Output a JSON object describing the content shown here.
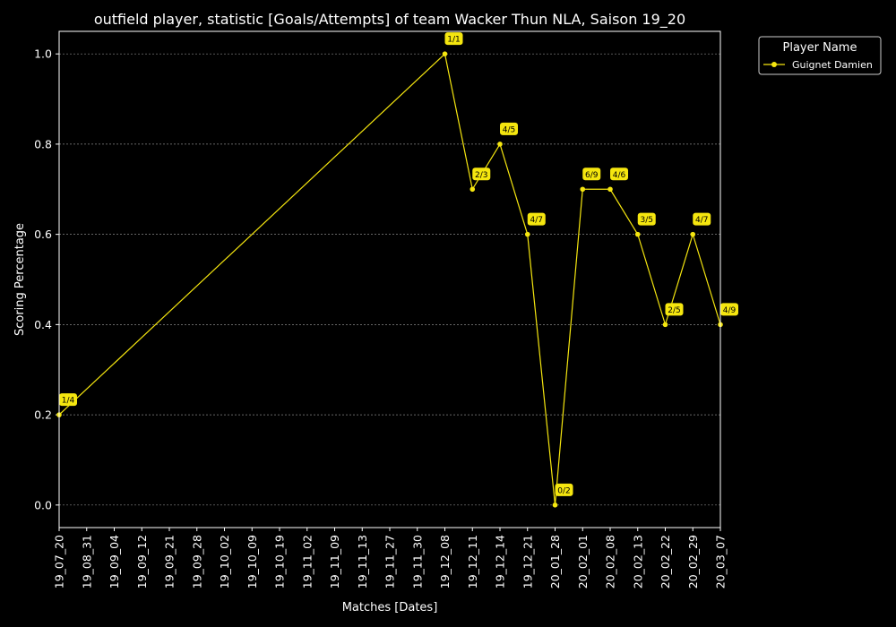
{
  "chart_data": {
    "type": "line",
    "title": "outfield player, statistic [Goals/Attempts] of team Wacker Thun NLA, Saison 19_20",
    "xlabel": "Matches [Dates]",
    "ylabel": "Scoring Percentage",
    "ylim": [
      -0.05,
      1.05
    ],
    "yticks": [
      "0.0",
      "0.2",
      "0.4",
      "0.6",
      "0.8",
      "1.0"
    ],
    "grid": true,
    "legend": {
      "title": "Player Name",
      "placement": "top-right, outside plot"
    },
    "categories": [
      "19_07_20",
      "19_08_31",
      "19_09_04",
      "19_09_12",
      "19_09_21",
      "19_09_28",
      "19_10_02",
      "19_10_09",
      "19_10_19",
      "19_11_02",
      "19_11_09",
      "19_11_13",
      "19_11_27",
      "19_11_30",
      "19_12_08",
      "19_12_11",
      "19_12_14",
      "19_12_21",
      "20_01_28",
      "20_02_01",
      "20_02_08",
      "20_02_13",
      "20_02_22",
      "20_02_29",
      "20_03_07"
    ],
    "series": [
      {
        "name": "Guignet Damien",
        "color": "#f5e60f",
        "points": [
          {
            "x": "19_07_20",
            "y": 0.2,
            "label": "1/4"
          },
          {
            "x": "19_12_08",
            "y": 1.0,
            "label": "1/1"
          },
          {
            "x": "19_12_11",
            "y": 0.7,
            "label": "2/3"
          },
          {
            "x": "19_12_14",
            "y": 0.8,
            "label": "4/5"
          },
          {
            "x": "19_12_21",
            "y": 0.6,
            "label": "4/7"
          },
          {
            "x": "20_01_28",
            "y": 0.0,
            "label": "0/2"
          },
          {
            "x": "20_02_01",
            "y": 0.7,
            "label": "6/9"
          },
          {
            "x": "20_02_08",
            "y": 0.7,
            "label": "4/6"
          },
          {
            "x": "20_02_13",
            "y": 0.6,
            "label": "3/5"
          },
          {
            "x": "20_02_22",
            "y": 0.4,
            "label": "2/5"
          },
          {
            "x": "20_02_29",
            "y": 0.6,
            "label": "4/7"
          },
          {
            "x": "20_03_07",
            "y": 0.4,
            "label": "4/9"
          }
        ]
      }
    ]
  }
}
